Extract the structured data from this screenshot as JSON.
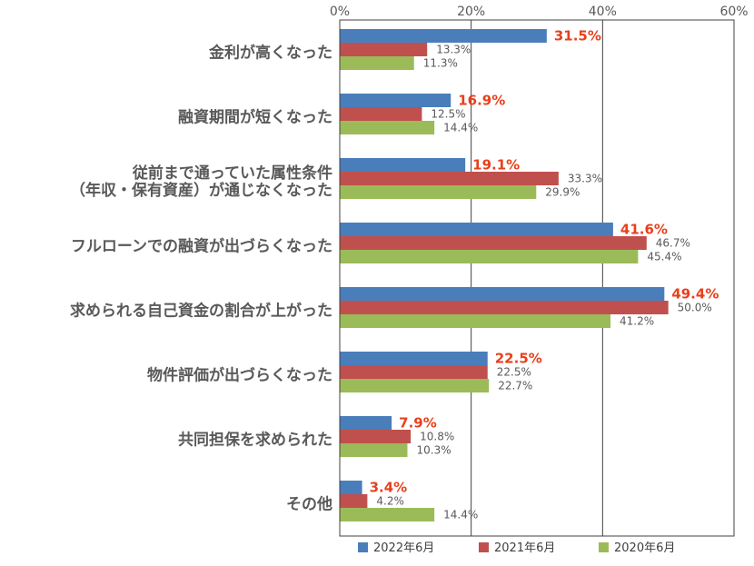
{
  "chart_data": {
    "type": "bar",
    "orientation": "horizontal",
    "title": "",
    "xlabel": "",
    "ylabel": "",
    "xlim": [
      0,
      60
    ],
    "xticks": [
      "0%",
      "20%",
      "40%",
      "60%"
    ],
    "tick_values": [
      0,
      20,
      40,
      60
    ],
    "grid": true,
    "legend_position": "bottom",
    "categories": [
      [
        "金利が高くなった"
      ],
      [
        "融資期間が短くなった"
      ],
      [
        "従前まで通っていた属性条件",
        "（年収・保有資産）が通じなくなった"
      ],
      [
        "フルローンでの融資が出づらくなった"
      ],
      [
        "求められる自己資金の割合が上がった"
      ],
      [
        "物件評価が出づらくなった"
      ],
      [
        "共同担保を求められた"
      ],
      [
        "その他"
      ]
    ],
    "series": [
      {
        "name": "2022年6月",
        "color": "#4a7ebb",
        "highlight": true,
        "values": [
          31.5,
          16.9,
          19.1,
          41.6,
          49.4,
          22.5,
          7.9,
          3.4
        ],
        "labels": [
          "31.5%",
          "16.9%",
          "19.1%",
          "41.6%",
          "49.4%",
          "22.5%",
          "7.9%",
          "3.4%"
        ]
      },
      {
        "name": "2021年6月",
        "color": "#c0504d",
        "highlight": false,
        "values": [
          13.3,
          12.5,
          33.3,
          46.7,
          50.0,
          22.5,
          10.8,
          4.2
        ],
        "labels": [
          "13.3%",
          "12.5%",
          "33.3%",
          "46.7%",
          "50.0%",
          "22.5%",
          "10.8%",
          "4.2%"
        ]
      },
      {
        "name": "2020年6月",
        "color": "#9bbb59",
        "highlight": false,
        "values": [
          11.3,
          14.4,
          29.9,
          45.4,
          41.2,
          22.7,
          10.3,
          14.4
        ],
        "labels": [
          "11.3%",
          "14.4%",
          "29.9%",
          "45.4%",
          "41.2%",
          "22.7%",
          "10.3%",
          "14.4%"
        ]
      }
    ],
    "highlight_label_color": "#e8401c"
  }
}
